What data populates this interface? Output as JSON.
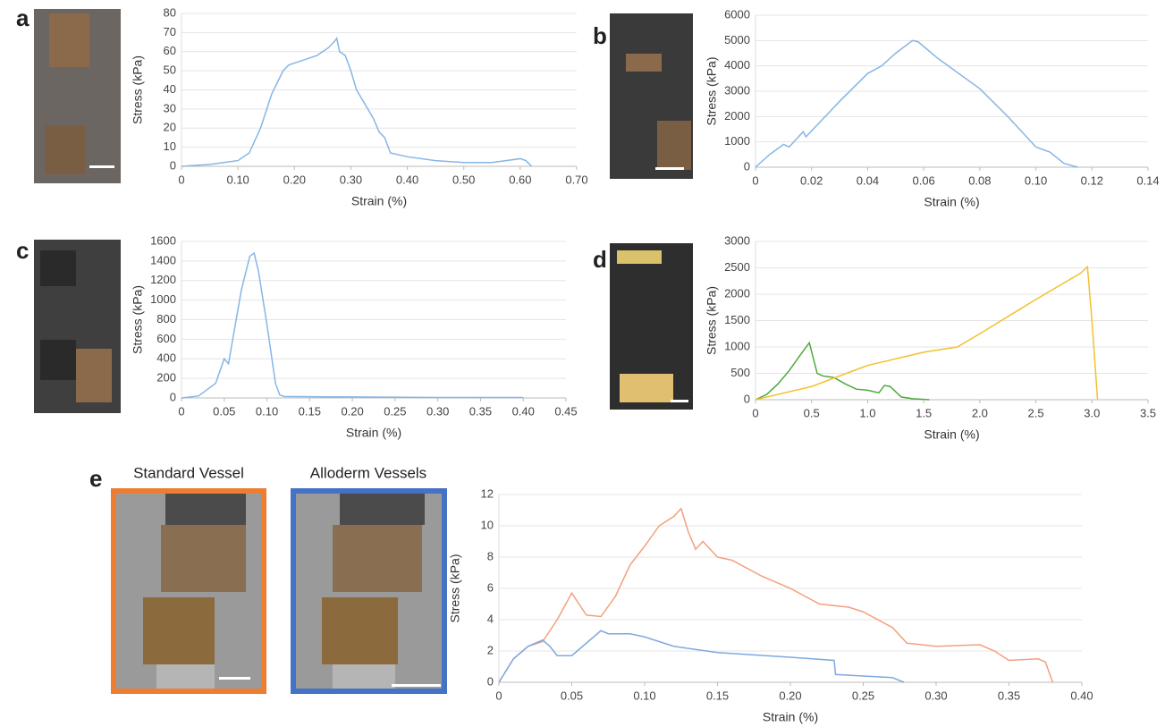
{
  "chart_data": [
    {
      "type": "line",
      "panel": "a",
      "x_label": "Strain (%)",
      "y_label": "Stress (kPa)",
      "grid": true,
      "xlim": [
        0,
        0.7
      ],
      "ylim": [
        0,
        80
      ],
      "xticks": [
        0,
        {
          "value": 0.1,
          "label": "0.10"
        },
        {
          "value": 0.2,
          "label": "0.20"
        },
        {
          "value": 0.3,
          "label": "0.30"
        },
        {
          "value": 0.4,
          "label": "0.40"
        },
        {
          "value": 0.5,
          "label": "0.50"
        },
        {
          "value": 0.6,
          "label": "0.60"
        },
        {
          "value": 0.7,
          "label": "0.70"
        }
      ],
      "yticks": [
        0,
        10,
        20,
        30,
        40,
        50,
        60,
        70,
        80
      ],
      "series": [
        {
          "color": "#86b6e6",
          "x": [
            0,
            0.05,
            0.1,
            0.12,
            0.14,
            0.16,
            0.18,
            0.19,
            0.2,
            0.22,
            0.24,
            0.26,
            0.27,
            0.275,
            0.28,
            0.29,
            0.3,
            0.31,
            0.32,
            0.33,
            0.34,
            0.35,
            0.36,
            0.37,
            0.4,
            0.45,
            0.5,
            0.55,
            0.6,
            0.61,
            0.62
          ],
          "values": [
            0,
            1,
            3,
            7,
            20,
            38,
            50,
            53,
            54,
            56,
            58,
            62,
            65,
            67,
            60,
            58,
            50,
            40,
            35,
            30,
            25,
            18,
            15,
            7,
            5,
            3,
            2,
            2,
            4,
            3,
            0
          ]
        }
      ]
    },
    {
      "type": "line",
      "panel": "b",
      "x_label": "Strain (%)",
      "y_label": "Stress (kPa)",
      "grid": true,
      "xlim": [
        0,
        0.14
      ],
      "ylim": [
        0,
        6000
      ],
      "xticks": [
        0,
        0.02,
        0.04,
        0.06,
        0.08,
        {
          "value": 0.1,
          "label": "0.10"
        },
        0.12,
        0.14
      ],
      "yticks": [
        0,
        1000,
        2000,
        3000,
        4000,
        5000,
        6000
      ],
      "series": [
        {
          "color": "#86b6e6",
          "x": [
            0,
            0.005,
            0.01,
            0.012,
            0.017,
            0.018,
            0.03,
            0.04,
            0.045,
            0.05,
            0.056,
            0.058,
            0.065,
            0.07,
            0.08,
            0.09,
            0.1,
            0.105,
            0.11,
            0.115
          ],
          "values": [
            0,
            500,
            900,
            800,
            1400,
            1200,
            2600,
            3700,
            4000,
            4500,
            5000,
            4950,
            4300,
            3900,
            3100,
            2000,
            800,
            600,
            150,
            0
          ]
        }
      ]
    },
    {
      "type": "line",
      "panel": "c",
      "x_label": "Strain (%)",
      "y_label": "Stress (kPa)",
      "grid": true,
      "xlim": [
        0,
        0.45
      ],
      "ylim": [
        0,
        1600
      ],
      "xticks": [
        0,
        0.05,
        {
          "value": 0.1,
          "label": "0.10"
        },
        0.15,
        {
          "value": 0.2,
          "label": "0.20"
        },
        0.25,
        {
          "value": 0.3,
          "label": "0.30"
        },
        0.35,
        {
          "value": 0.4,
          "label": "0.40"
        },
        0.45
      ],
      "yticks": [
        0,
        200,
        400,
        600,
        800,
        1000,
        1200,
        1400,
        1600
      ],
      "series": [
        {
          "color": "#86b6e6",
          "x": [
            0,
            0.02,
            0.04,
            0.05,
            0.055,
            0.06,
            0.07,
            0.08,
            0.085,
            0.09,
            0.1,
            0.11,
            0.115,
            0.12,
            0.2,
            0.3,
            0.4
          ],
          "values": [
            0,
            20,
            150,
            400,
            350,
            600,
            1100,
            1450,
            1480,
            1300,
            750,
            150,
            30,
            15,
            10,
            5,
            5
          ]
        }
      ]
    },
    {
      "type": "line",
      "panel": "d",
      "x_label": "Strain (%)",
      "y_label": "Stress (kPa)",
      "grid": true,
      "xlim": [
        0,
        3.5
      ],
      "ylim": [
        0,
        3000
      ],
      "xticks": [
        0,
        0.5,
        {
          "value": 1,
          "label": "1.0"
        },
        1.5,
        {
          "value": 2,
          "label": "2.0"
        },
        2.5,
        {
          "value": 3,
          "label": "3.0"
        },
        3.5
      ],
      "yticks": [
        0,
        500,
        1000,
        1500,
        2000,
        2500,
        3000
      ],
      "series": [
        {
          "color": "#4ea83c",
          "x": [
            0,
            0.1,
            0.2,
            0.3,
            0.4,
            0.48,
            0.55,
            0.6,
            0.7,
            0.8,
            0.9,
            1.0,
            1.1,
            1.15,
            1.2,
            1.3,
            1.4,
            1.55
          ],
          "values": [
            0,
            100,
            300,
            550,
            850,
            1080,
            500,
            450,
            420,
            300,
            200,
            180,
            130,
            270,
            250,
            50,
            20,
            0
          ]
        },
        {
          "color": "#f2c12e",
          "x": [
            0,
            0.5,
            1.0,
            1.1,
            1.5,
            1.8,
            2.0,
            2.5,
            2.9,
            2.96,
            3.0,
            3.05
          ],
          "values": [
            0,
            250,
            650,
            700,
            900,
            1000,
            1250,
            1900,
            2400,
            2520,
            1500,
            0
          ]
        }
      ]
    },
    {
      "type": "line",
      "panel": "e",
      "x_label": "Strain (%)",
      "y_label": "Stress (kPa)",
      "grid": true,
      "photo_titles": [
        "Standard Vessel",
        "Alloderm Vessels"
      ],
      "xlim": [
        0,
        0.4
      ],
      "ylim": [
        0,
        12
      ],
      "xticks": [
        0,
        0.05,
        {
          "value": 0.1,
          "label": "0.10"
        },
        0.15,
        {
          "value": 0.2,
          "label": "0.20"
        },
        0.25,
        {
          "value": 0.3,
          "label": "0.30"
        },
        0.35,
        {
          "value": 0.4,
          "label": "0.40"
        }
      ],
      "yticks": [
        0,
        2,
        4,
        6,
        8,
        10,
        12
      ],
      "series": [
        {
          "color": "#f3a07c",
          "x": [
            0,
            0.01,
            0.02,
            0.03,
            0.04,
            0.05,
            0.055,
            0.06,
            0.07,
            0.08,
            0.09,
            0.1,
            0.11,
            0.12,
            0.125,
            0.13,
            0.135,
            0.14,
            0.15,
            0.16,
            0.18,
            0.2,
            0.22,
            0.24,
            0.25,
            0.27,
            0.28,
            0.3,
            0.33,
            0.34,
            0.35,
            0.37,
            0.375,
            0.38
          ],
          "values": [
            0,
            1.5,
            2.3,
            2.6,
            4,
            5.7,
            5,
            4.3,
            4.2,
            5.5,
            7.5,
            8.7,
            10,
            10.6,
            11.1,
            9.6,
            8.5,
            9,
            8,
            7.8,
            6.8,
            6,
            5,
            4.8,
            4.5,
            3.5,
            2.5,
            2.3,
            2.4,
            2,
            1.4,
            1.5,
            1.3,
            0
          ]
        },
        {
          "color": "#7ea9e0",
          "x": [
            0,
            0.01,
            0.02,
            0.03,
            0.035,
            0.04,
            0.05,
            0.06,
            0.07,
            0.075,
            0.09,
            0.1,
            0.12,
            0.15,
            0.2,
            0.23,
            0.231,
            0.25,
            0.27,
            0.278
          ],
          "values": [
            0,
            1.5,
            2.3,
            2.7,
            2.3,
            1.7,
            1.7,
            2.5,
            3.3,
            3.1,
            3.1,
            2.9,
            2.3,
            1.9,
            1.6,
            1.4,
            0.5,
            0.4,
            0.3,
            0
          ]
        }
      ]
    }
  ]
}
